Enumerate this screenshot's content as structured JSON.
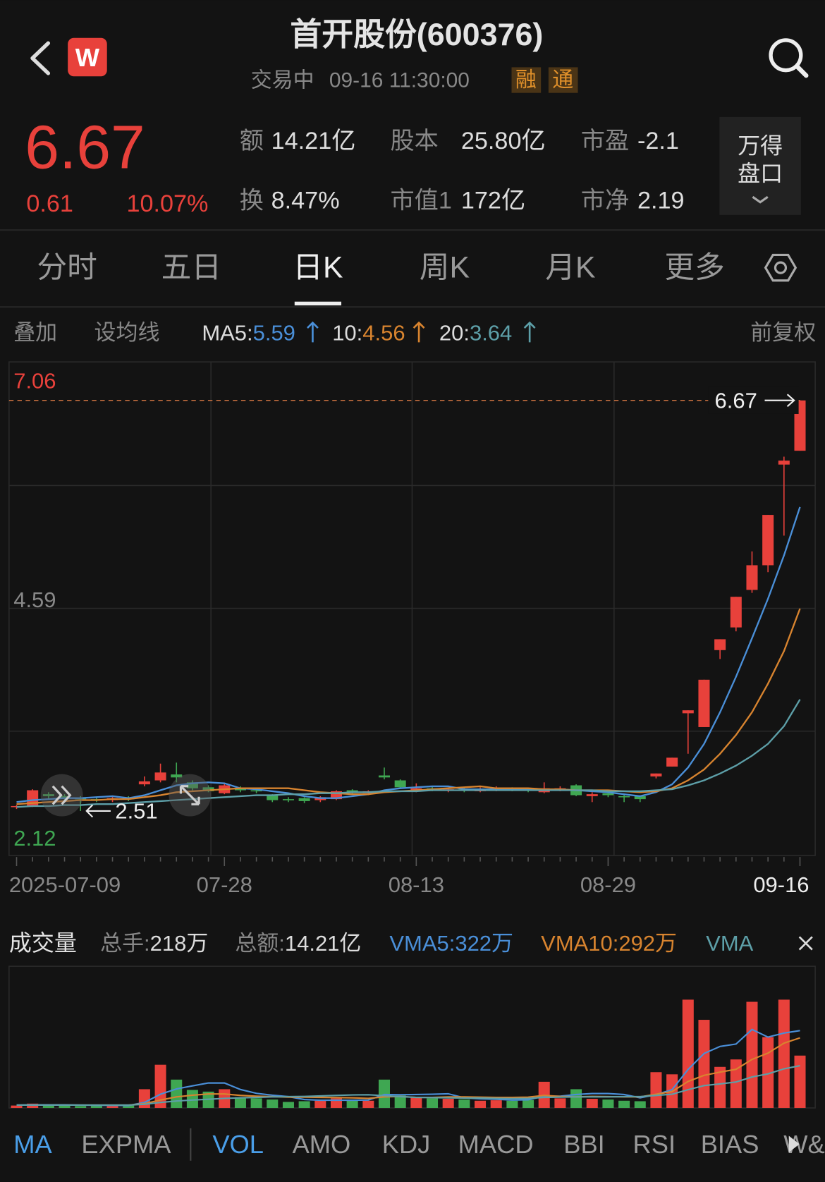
{
  "header": {
    "logo": "W",
    "title": "首开股份(600376)",
    "status": "交易中",
    "time": "09-16 11:30:00",
    "tags": [
      "融",
      "通"
    ]
  },
  "quote": {
    "price": 6.67,
    "change": 0.61,
    "change_pct": "10.07%",
    "stats": [
      {
        "label": "额",
        "value": "14.21亿"
      },
      {
        "label": "股本",
        "value": "25.80亿"
      },
      {
        "label": "市盈",
        "value": "-2.1"
      },
      {
        "label": "换",
        "value": "8.47%"
      },
      {
        "label": "市值1",
        "value": "172亿"
      },
      {
        "label": "市净",
        "value": "2.19"
      }
    ],
    "panel_button": [
      "万得",
      "盘口"
    ]
  },
  "tabs": {
    "items": [
      "分时",
      "五日",
      "日K",
      "周K",
      "月K",
      "更多"
    ],
    "active": 2
  },
  "toolbar": {
    "left": [
      "叠加",
      "设均线"
    ],
    "right": "前复权"
  },
  "chart_data": [
    {
      "type": "candlestick",
      "up_color": "#e8413b",
      "down_color": "#3fa752",
      "categories": [
        "2025-07-09",
        null,
        null,
        null,
        null,
        null,
        null,
        null,
        null,
        null,
        null,
        null,
        null,
        "07-28",
        null,
        null,
        null,
        null,
        null,
        null,
        null,
        null,
        null,
        null,
        null,
        "08-13",
        null,
        null,
        null,
        null,
        null,
        null,
        null,
        null,
        null,
        null,
        null,
        "08-29",
        null,
        null,
        null,
        null,
        null,
        null,
        null,
        null,
        null,
        null,
        null,
        "09-16"
      ],
      "open": [
        2.55,
        2.56,
        2.68,
        2.66,
        2.64,
        2.63,
        2.62,
        2.64,
        2.78,
        2.82,
        2.88,
        2.8,
        2.75,
        2.69,
        2.74,
        2.72,
        2.67,
        2.63,
        2.64,
        2.62,
        2.63,
        2.72,
        2.69,
        2.87,
        2.82,
        2.71,
        2.74,
        2.72,
        2.73,
        2.71,
        2.72,
        2.74,
        2.73,
        2.7,
        2.73,
        2.77,
        2.66,
        2.69,
        2.66,
        2.66,
        2.86,
        2.96,
        3.5,
        3.36,
        4.14,
        4.37,
        4.75,
        5.0,
        6.02,
        6.16
      ],
      "high": [
        2.57,
        2.73,
        2.7,
        2.68,
        2.66,
        2.65,
        2.66,
        2.66,
        2.86,
        2.99,
        3.0,
        2.82,
        2.77,
        2.79,
        2.76,
        2.74,
        2.68,
        2.65,
        2.65,
        2.66,
        2.72,
        2.73,
        2.72,
        2.95,
        2.83,
        2.79,
        2.76,
        2.75,
        2.75,
        2.75,
        2.76,
        2.75,
        2.74,
        2.8,
        2.76,
        2.78,
        2.7,
        2.71,
        2.68,
        2.67,
        2.89,
        3.05,
        3.53,
        3.84,
        4.25,
        4.68,
        5.14,
        5.51,
        6.1,
        6.67
      ],
      "low": [
        2.53,
        2.55,
        2.63,
        2.61,
        2.51,
        2.6,
        2.6,
        2.61,
        2.76,
        2.8,
        2.8,
        2.72,
        2.7,
        2.68,
        2.7,
        2.69,
        2.6,
        2.6,
        2.59,
        2.6,
        2.62,
        2.68,
        2.67,
        2.83,
        2.74,
        2.7,
        2.71,
        2.7,
        2.7,
        2.7,
        2.71,
        2.71,
        2.7,
        2.69,
        2.71,
        2.66,
        2.6,
        2.65,
        2.6,
        2.6,
        2.84,
        2.96,
        3.09,
        3.36,
        4.05,
        4.33,
        4.72,
        4.93,
        5.3,
        6.16
      ],
      "close": [
        2.56,
        2.72,
        2.66,
        2.64,
        2.63,
        2.62,
        2.64,
        2.63,
        2.81,
        2.9,
        2.85,
        2.74,
        2.71,
        2.77,
        2.72,
        2.71,
        2.62,
        2.62,
        2.61,
        2.65,
        2.71,
        2.7,
        2.71,
        2.85,
        2.75,
        2.74,
        2.73,
        2.73,
        2.72,
        2.73,
        2.74,
        2.73,
        2.72,
        2.74,
        2.74,
        2.67,
        2.68,
        2.67,
        2.65,
        2.63,
        2.89,
        3.05,
        3.53,
        3.84,
        4.25,
        4.68,
        5.0,
        5.51,
        6.06,
        6.67
      ],
      "series": [
        {
          "name": "MA5:",
          "color": "#4a8fd8",
          "values": [
            2.6,
            2.62,
            2.63,
            2.64,
            2.64,
            2.65,
            2.66,
            2.64,
            2.67,
            2.72,
            2.77,
            2.79,
            2.8,
            2.79,
            2.74,
            2.73,
            2.71,
            2.69,
            2.66,
            2.64,
            2.64,
            2.66,
            2.68,
            2.72,
            2.74,
            2.75,
            2.76,
            2.76,
            2.73,
            2.73,
            2.73,
            2.73,
            2.73,
            2.73,
            2.73,
            2.72,
            2.71,
            2.7,
            2.68,
            2.66,
            2.7,
            2.78,
            2.95,
            3.19,
            3.51,
            3.87,
            4.26,
            4.66,
            5.1,
            5.59
          ]
        },
        {
          "name": "10:",
          "color": "#d8842f",
          "values": [
            2.58,
            2.59,
            2.6,
            2.61,
            2.62,
            2.62,
            2.63,
            2.63,
            2.65,
            2.67,
            2.7,
            2.71,
            2.72,
            2.73,
            2.74,
            2.74,
            2.74,
            2.74,
            2.72,
            2.7,
            2.69,
            2.68,
            2.68,
            2.7,
            2.71,
            2.72,
            2.73,
            2.74,
            2.75,
            2.76,
            2.74,
            2.74,
            2.74,
            2.73,
            2.73,
            2.72,
            2.72,
            2.72,
            2.71,
            2.7,
            2.71,
            2.74,
            2.82,
            2.93,
            3.09,
            3.28,
            3.51,
            3.8,
            4.13,
            4.56
          ]
        },
        {
          "name": "20:",
          "color": "#5d9fa8",
          "values": [
            2.55,
            2.56,
            2.56,
            2.57,
            2.57,
            2.58,
            2.58,
            2.59,
            2.6,
            2.61,
            2.62,
            2.63,
            2.64,
            2.65,
            2.66,
            2.67,
            2.67,
            2.68,
            2.68,
            2.69,
            2.69,
            2.7,
            2.7,
            2.71,
            2.71,
            2.71,
            2.72,
            2.72,
            2.72,
            2.72,
            2.72,
            2.72,
            2.72,
            2.72,
            2.72,
            2.72,
            2.72,
            2.71,
            2.71,
            2.71,
            2.72,
            2.73,
            2.77,
            2.82,
            2.89,
            2.97,
            3.07,
            3.19,
            3.37,
            3.64
          ]
        }
      ],
      "ylim": [
        2.12,
        7.06
      ],
      "yticks": [
        7.06,
        4.59,
        2.12
      ]
    },
    {
      "type": "bar",
      "title": "成交量",
      "totals": [
        {
          "label": "总手:",
          "value": "218万"
        },
        {
          "label": "总额:",
          "value": "14.21亿"
        }
      ],
      "values": [
        10,
        18,
        12,
        10,
        8,
        9,
        8,
        10,
        78,
        180,
        118,
        75,
        68,
        78,
        45,
        40,
        35,
        25,
        28,
        30,
        40,
        35,
        30,
        118,
        52,
        45,
        40,
        38,
        35,
        30,
        32,
        30,
        33,
        109,
        40,
        78,
        38,
        35,
        30,
        28,
        149,
        140,
        451,
        367,
        171,
        202,
        442,
        295,
        451,
        218
      ],
      "series": [
        {
          "name": "VMA5:",
          "legend_value": "322万",
          "color": "#4a8fd8",
          "values": [
            12,
            13,
            13,
            13,
            12,
            11,
            11,
            10,
            23,
            57,
            79,
            92,
            104,
            104,
            77,
            61,
            53,
            47,
            35,
            32,
            32,
            32,
            33,
            56,
            55,
            56,
            57,
            59,
            42,
            38,
            36,
            33,
            34,
            49,
            49,
            56,
            60,
            60,
            56,
            42,
            56,
            76,
            160,
            227,
            256,
            266,
            327,
            295,
            312,
            322
          ]
        },
        {
          "name": "VMA10:",
          "legend_value": "292万",
          "color": "#d8842f",
          "values": [
            12,
            12,
            12,
            12,
            12,
            12,
            12,
            12,
            18,
            33,
            46,
            53,
            58,
            58,
            52,
            49,
            47,
            45,
            45,
            44,
            43,
            42,
            40,
            46,
            48,
            44,
            44,
            46,
            46,
            45,
            44,
            44,
            45,
            52,
            48,
            46,
            48,
            47,
            46,
            46,
            57,
            68,
            110,
            136,
            149,
            161,
            202,
            228,
            270,
            292
          ]
        },
        {
          "name": "VMA",
          "color": "#5d9fa8",
          "values": [
            12,
            12,
            12,
            12,
            12,
            12,
            12,
            12,
            15,
            23,
            29,
            33,
            36,
            40,
            42,
            44,
            46,
            47,
            48,
            50,
            52,
            54,
            55,
            51,
            47,
            44,
            43,
            42,
            41,
            41,
            40,
            39,
            40,
            44,
            45,
            46,
            46,
            46,
            47,
            47,
            52,
            57,
            76,
            93,
            100,
            108,
            129,
            142,
            163,
            176
          ]
        }
      ],
      "ylim": [
        0,
        590
      ]
    }
  ],
  "indicator_tabs": {
    "items": [
      "MA",
      "EXPMA",
      "VOL",
      "AMO",
      "KDJ",
      "MACD",
      "BBI",
      "RSI",
      "BIAS",
      "W&R"
    ],
    "active": [
      0,
      2
    ]
  }
}
